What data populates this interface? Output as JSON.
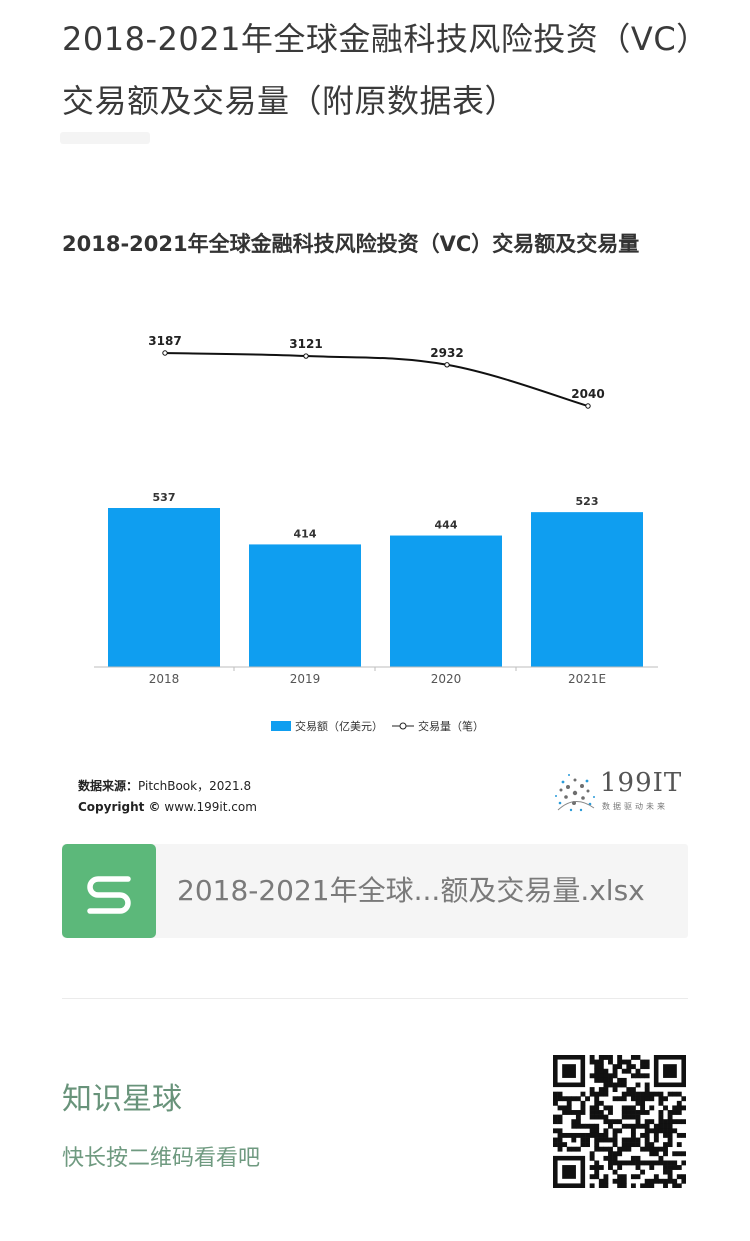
{
  "article": {
    "title": "2018-2021年全球金融科技风险投资（VC）交易额及交易量（附原数据表）"
  },
  "chart_data": {
    "type": "bar",
    "title": "2018-2021年全球金融科技风险投资（VC）交易额及交易量",
    "categories": [
      "2018",
      "2019",
      "2020",
      "2021E"
    ],
    "series": [
      {
        "name": "交易额（亿美元）",
        "kind": "bar",
        "color": "#0f9ef0",
        "values": [
          537,
          414,
          444,
          523
        ]
      },
      {
        "name": "交易量（笔）",
        "kind": "line",
        "color": "#111111",
        "values": [
          3187,
          3121,
          2932,
          2040
        ]
      }
    ],
    "legend": [
      "交易额（亿美元）",
      "交易量（笔）"
    ],
    "legend_position": "bottom",
    "grid": false
  },
  "source": {
    "label": "数据来源：",
    "text": "PitchBook，2021.8",
    "copyright_label": "Copyright ©",
    "copyright_text": "www.199it.com"
  },
  "brand": {
    "name": "199IT",
    "tagline": "数据驱动未来"
  },
  "attachment": {
    "filename": "2018-2021年全球...额及交易量.xlsx",
    "icon": "spreadsheet-s-icon",
    "icon_color": "#5cb87a"
  },
  "planet": {
    "title": "知识星球",
    "subtitle": "快长按二维码看看吧",
    "qr_icon": "qr-code-icon"
  }
}
